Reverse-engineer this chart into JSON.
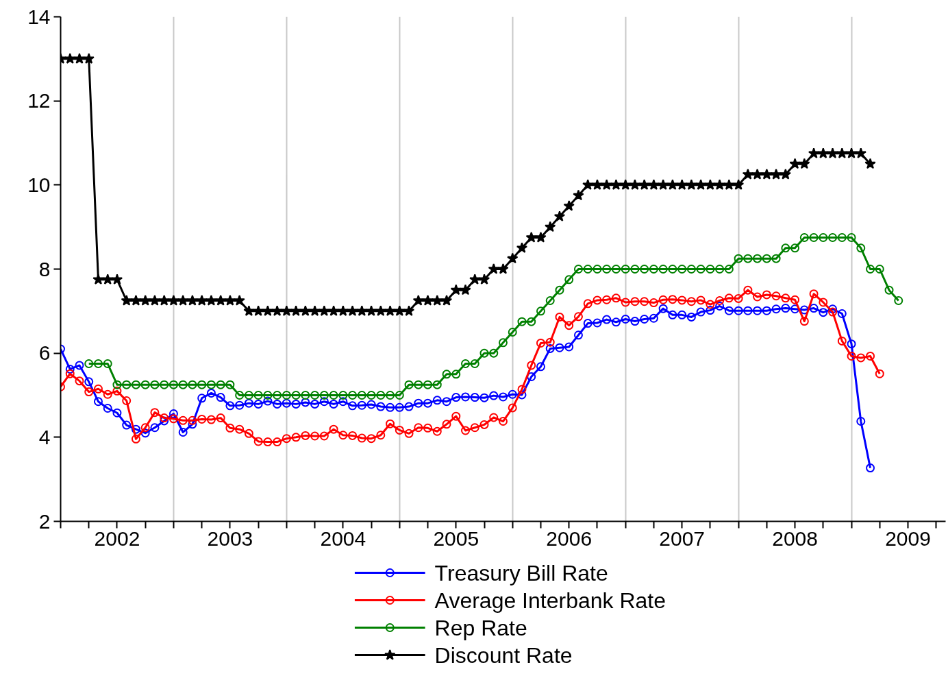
{
  "chart_data": {
    "type": "line",
    "x": [
      "2002-01",
      "2002-02",
      "2002-03",
      "2002-04",
      "2002-05",
      "2002-06",
      "2002-07",
      "2002-08",
      "2002-09",
      "2002-10",
      "2002-11",
      "2002-12",
      "2003-01",
      "2003-02",
      "2003-03",
      "2003-04",
      "2003-05",
      "2003-06",
      "2003-07",
      "2003-08",
      "2003-09",
      "2003-10",
      "2003-11",
      "2003-12",
      "2004-01",
      "2004-02",
      "2004-03",
      "2004-04",
      "2004-05",
      "2004-06",
      "2004-07",
      "2004-08",
      "2004-09",
      "2004-10",
      "2004-11",
      "2004-12",
      "2005-01",
      "2005-02",
      "2005-03",
      "2005-04",
      "2005-05",
      "2005-06",
      "2005-07",
      "2005-08",
      "2005-09",
      "2005-10",
      "2005-11",
      "2005-12",
      "2006-01",
      "2006-02",
      "2006-03",
      "2006-04",
      "2006-05",
      "2006-06",
      "2006-07",
      "2006-08",
      "2006-09",
      "2006-10",
      "2006-11",
      "2006-12",
      "2007-01",
      "2007-02",
      "2007-03",
      "2007-04",
      "2007-05",
      "2007-06",
      "2007-07",
      "2007-08",
      "2007-09",
      "2007-10",
      "2007-11",
      "2007-12",
      "2008-01",
      "2008-02",
      "2008-03",
      "2008-04",
      "2008-05",
      "2008-06",
      "2008-07",
      "2008-08",
      "2008-09",
      "2008-10",
      "2008-11",
      "2008-12",
      "2009-01",
      "2009-02",
      "2009-03",
      "2009-04",
      "2009-05",
      "2009-06"
    ],
    "series": [
      {
        "name": "Treasury Bill Rate",
        "color": "#0000ff",
        "marker": "circle",
        "values": [
          6.1,
          5.62,
          5.71,
          5.32,
          4.85,
          4.69,
          4.58,
          4.29,
          4.19,
          4.1,
          4.23,
          4.39,
          4.56,
          4.12,
          4.31,
          4.93,
          5.05,
          4.95,
          4.75,
          4.76,
          4.81,
          4.79,
          4.86,
          4.79,
          4.81,
          4.79,
          4.83,
          4.79,
          4.85,
          4.79,
          4.85,
          4.75,
          4.76,
          4.78,
          4.73,
          4.71,
          4.71,
          4.73,
          4.81,
          4.81,
          4.88,
          4.85,
          4.95,
          4.96,
          4.95,
          4.94,
          4.99,
          4.96,
          5.02,
          5.01,
          5.44,
          5.68,
          6.11,
          6.13,
          6.15,
          6.43,
          6.71,
          6.72,
          6.8,
          6.74,
          6.81,
          6.76,
          6.81,
          6.83,
          7.06,
          6.91,
          6.91,
          6.86,
          6.98,
          7.02,
          7.12,
          7.01,
          7.01,
          7.01,
          7.01,
          7.01,
          7.05,
          7.07,
          7.05,
          7.03,
          7.07,
          6.97,
          7.05,
          6.94,
          6.22,
          4.38,
          3.27,
          null,
          null,
          null
        ]
      },
      {
        "name": "Average Interbank Rate",
        "color": "#ff0000",
        "marker": "circle",
        "values": [
          5.2,
          5.51,
          5.34,
          5.08,
          5.15,
          5.02,
          5.1,
          4.87,
          3.96,
          4.23,
          4.59,
          4.46,
          4.44,
          4.4,
          4.4,
          4.43,
          4.42,
          4.46,
          4.22,
          4.19,
          4.09,
          3.9,
          3.89,
          3.89,
          3.97,
          4.0,
          4.04,
          4.03,
          4.03,
          4.19,
          4.05,
          4.04,
          3.98,
          3.97,
          4.05,
          4.32,
          4.17,
          4.09,
          4.23,
          4.22,
          4.14,
          4.31,
          4.5,
          4.16,
          4.23,
          4.3,
          4.47,
          4.38,
          4.7,
          5.14,
          5.71,
          6.24,
          6.26,
          6.86,
          6.66,
          6.87,
          7.18,
          7.26,
          7.27,
          7.31,
          7.21,
          7.23,
          7.23,
          7.2,
          7.27,
          7.28,
          7.26,
          7.23,
          7.26,
          7.16,
          7.25,
          7.31,
          7.3,
          7.5,
          7.34,
          7.39,
          7.36,
          7.31,
          7.27,
          6.76,
          7.41,
          7.21,
          6.98,
          6.29,
          5.93,
          5.89,
          5.93,
          5.51,
          null,
          null
        ]
      },
      {
        "name": "Rep Rate",
        "color": "#008000",
        "marker": "circle",
        "values": [
          null,
          null,
          null,
          5.75,
          5.75,
          5.75,
          5.25,
          5.25,
          5.25,
          5.25,
          5.25,
          5.25,
          5.25,
          5.25,
          5.25,
          5.25,
          5.25,
          5.25,
          5.25,
          5.0,
          5.0,
          5.0,
          5.0,
          5.0,
          5.0,
          5.0,
          5.0,
          5.0,
          5.0,
          5.0,
          5.0,
          5.0,
          5.0,
          5.0,
          5.0,
          5.0,
          5.0,
          5.25,
          5.25,
          5.25,
          5.25,
          5.5,
          5.5,
          5.75,
          5.75,
          6.0,
          6.0,
          6.25,
          6.5,
          6.75,
          6.75,
          7.0,
          7.25,
          7.5,
          7.75,
          8.0,
          8.0,
          8.0,
          8.0,
          8.0,
          8.0,
          8.0,
          8.0,
          8.0,
          8.0,
          8.0,
          8.0,
          8.0,
          8.0,
          8.0,
          8.0,
          8.0,
          8.25,
          8.25,
          8.25,
          8.25,
          8.25,
          8.5,
          8.5,
          8.75,
          8.75,
          8.75,
          8.75,
          8.75,
          8.75,
          8.5,
          8.0,
          8.0,
          7.5,
          7.25
        ]
      },
      {
        "name": "Discount Rate",
        "color": "#000000",
        "marker": "star",
        "values": [
          13.0,
          13.0,
          13.0,
          13.0,
          7.75,
          7.75,
          7.75,
          7.25,
          7.25,
          7.25,
          7.25,
          7.25,
          7.25,
          7.25,
          7.25,
          7.25,
          7.25,
          7.25,
          7.25,
          7.25,
          7.0,
          7.0,
          7.0,
          7.0,
          7.0,
          7.0,
          7.0,
          7.0,
          7.0,
          7.0,
          7.0,
          7.0,
          7.0,
          7.0,
          7.0,
          7.0,
          7.0,
          7.0,
          7.25,
          7.25,
          7.25,
          7.25,
          7.5,
          7.5,
          7.75,
          7.75,
          8.0,
          8.0,
          8.25,
          8.5,
          8.75,
          8.75,
          9.0,
          9.25,
          9.5,
          9.75,
          10.0,
          10.0,
          10.0,
          10.0,
          10.0,
          10.0,
          10.0,
          10.0,
          10.0,
          10.0,
          10.0,
          10.0,
          10.0,
          10.0,
          10.0,
          10.0,
          10.0,
          10.25,
          10.25,
          10.25,
          10.25,
          10.25,
          10.5,
          10.5,
          10.75,
          10.75,
          10.75,
          10.75,
          10.75,
          10.75,
          10.5,
          null,
          null,
          null
        ]
      }
    ],
    "ylim": [
      2,
      14
    ],
    "yticks": [
      2,
      4,
      6,
      8,
      10,
      12,
      14
    ],
    "xlim": [
      "2002-01",
      "2009-11"
    ],
    "xticks": [
      {
        "value": "2002-01",
        "label": null
      },
      {
        "value": "2002-04",
        "label": null
      },
      {
        "value": "2002-07",
        "label": "2002"
      },
      {
        "value": "2002-10",
        "label": null
      },
      {
        "value": "2003-01",
        "label": null
      },
      {
        "value": "2003-04",
        "label": null
      },
      {
        "value": "2003-07",
        "label": "2003"
      },
      {
        "value": "2003-10",
        "label": null
      },
      {
        "value": "2004-01",
        "label": null
      },
      {
        "value": "2004-04",
        "label": null
      },
      {
        "value": "2004-07",
        "label": "2004"
      },
      {
        "value": "2004-10",
        "label": null
      },
      {
        "value": "2005-01",
        "label": null
      },
      {
        "value": "2005-04",
        "label": null
      },
      {
        "value": "2005-07",
        "label": "2005"
      },
      {
        "value": "2005-10",
        "label": null
      },
      {
        "value": "2006-01",
        "label": null
      },
      {
        "value": "2006-04",
        "label": null
      },
      {
        "value": "2006-07",
        "label": "2006"
      },
      {
        "value": "2006-10",
        "label": null
      },
      {
        "value": "2007-01",
        "label": null
      },
      {
        "value": "2007-04",
        "label": null
      },
      {
        "value": "2007-07",
        "label": "2007"
      },
      {
        "value": "2007-10",
        "label": null
      },
      {
        "value": "2008-01",
        "label": null
      },
      {
        "value": "2008-04",
        "label": null
      },
      {
        "value": "2008-07",
        "label": "2008"
      },
      {
        "value": "2008-10",
        "label": null
      },
      {
        "value": "2009-01",
        "label": null
      },
      {
        "value": "2009-04",
        "label": null
      },
      {
        "value": "2009-07",
        "label": "2009"
      },
      {
        "value": "2009-10",
        "label": null
      }
    ],
    "grid": "x",
    "legend": "bottom",
    "line_style": "solid"
  }
}
